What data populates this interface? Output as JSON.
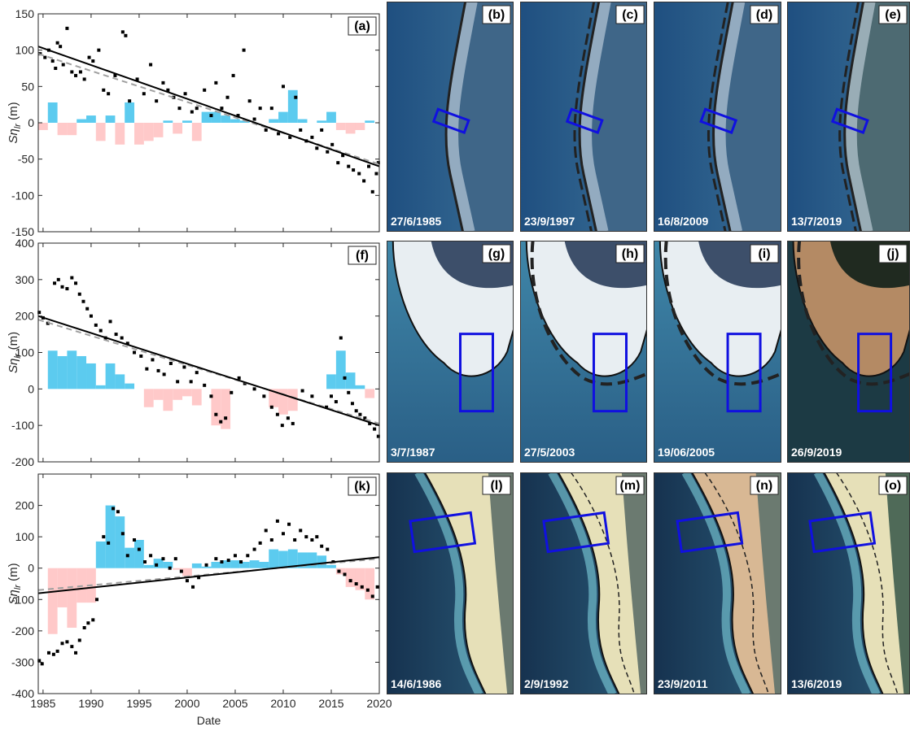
{
  "chart_data": [
    {
      "type": "scatter",
      "panel_label": "(a)",
      "ylabel": [
        "Sη",
        "lr",
        " (m)"
      ],
      "xlim": [
        1984.5,
        2020
      ],
      "xticks": [
        1985,
        1990,
        1995,
        2000,
        2005,
        2010,
        2015,
        2020
      ],
      "xtick_labels": false,
      "ylim": [
        -150,
        150
      ],
      "yticks": [
        -150,
        -100,
        -50,
        0,
        50,
        100,
        150
      ],
      "bars_positive": {
        "color": "#5ccbef",
        "x": [
          1986,
          1989,
          1990,
          1992,
          1994,
          1998,
          2000,
          2002,
          2003,
          2004,
          2005,
          2006,
          2009,
          2010,
          2011,
          2012,
          2014,
          2015,
          2019
        ],
        "values": [
          28,
          5,
          10,
          10,
          28,
          3,
          3,
          15,
          15,
          10,
          5,
          3,
          5,
          15,
          45,
          5,
          3,
          15,
          3
        ]
      },
      "bars_negative": {
        "color": "#ffc9c9",
        "x": [
          1985,
          1987,
          1988,
          1991,
          1993,
          1995,
          1996,
          1997,
          1999,
          2001,
          2016,
          2017,
          2018
        ],
        "values": [
          -10,
          -17,
          -17,
          -25,
          -30,
          -30,
          -25,
          -20,
          -15,
          -25,
          -10,
          -15,
          -10
        ]
      },
      "points": {
        "color": "#000000",
        "x": [
          1984.7,
          1985.2,
          1985.6,
          1986,
          1986.3,
          1986.5,
          1986.8,
          1987.1,
          1987.5,
          1988,
          1988.4,
          1988.9,
          1989.3,
          1989.8,
          1990.2,
          1990.8,
          1991.3,
          1991.8,
          1992.5,
          1993.3,
          1993.6,
          1994,
          1994.8,
          1995.5,
          1996.2,
          1996.8,
          1997.5,
          1998,
          1998.6,
          1999.2,
          1999.8,
          2000.5,
          2001,
          2001.8,
          2002.5,
          2003,
          2003.6,
          2004.2,
          2004.8,
          2005.3,
          2005.9,
          2006.5,
          2007,
          2007.6,
          2008.2,
          2008.8,
          2009.5,
          2010,
          2010.7,
          2011.3,
          2011.8,
          2012.4,
          2013,
          2013.5,
          2014,
          2014.6,
          2015.1,
          2015.7,
          2016.2,
          2016.8,
          2017.3,
          2017.9,
          2018.4,
          2018.9,
          2019.3,
          2019.7,
          2019.9
        ],
        "values": [
          95,
          90,
          100,
          85,
          75,
          110,
          105,
          80,
          130,
          70,
          65,
          70,
          60,
          90,
          85,
          100,
          45,
          40,
          65,
          125,
          120,
          30,
          60,
          40,
          80,
          30,
          55,
          45,
          35,
          20,
          40,
          15,
          20,
          45,
          10,
          55,
          20,
          35,
          65,
          10,
          100,
          30,
          5,
          20,
          -10,
          20,
          -15,
          50,
          -20,
          35,
          -10,
          -25,
          -20,
          -35,
          -10,
          -40,
          -30,
          -55,
          -45,
          -60,
          -65,
          -70,
          -80,
          -60,
          -95,
          -70,
          -55
        ]
      },
      "trend": {
        "color": "#000000",
        "x": [
          1984.5,
          2020
        ],
        "values": [
          105,
          -60
        ]
      },
      "trend_dashed": {
        "color": "#a0a0a0",
        "x": [
          1984.5,
          2020
        ],
        "values": [
          95,
          -57
        ]
      }
    },
    {
      "type": "scatter",
      "panel_label": "(f)",
      "ylabel": [
        "Sη",
        "lr",
        " (m)"
      ],
      "xlim": [
        1984.5,
        2020
      ],
      "xticks": [
        1985,
        1990,
        1995,
        2000,
        2005,
        2010,
        2015,
        2020
      ],
      "xtick_labels": false,
      "ylim": [
        -200,
        400
      ],
      "yticks": [
        -200,
        -100,
        0,
        100,
        200,
        300,
        400
      ],
      "bars_positive": {
        "color": "#5ccbef",
        "x": [
          1986,
          1987,
          1988,
          1989,
          1990,
          1991,
          1992,
          1993,
          1994,
          2015,
          2016,
          2017,
          2018
        ],
        "values": [
          105,
          90,
          105,
          90,
          70,
          10,
          70,
          40,
          15,
          40,
          105,
          45,
          10
        ]
      },
      "bars_negative": {
        "color": "#ffc9c9",
        "x": [
          1996,
          1997,
          1998,
          1999,
          2000,
          2001,
          2003,
          2004,
          2009,
          2010,
          2011,
          2019
        ],
        "values": [
          -50,
          -30,
          -60,
          -30,
          -20,
          -45,
          -100,
          -110,
          -50,
          -70,
          -60,
          -25
        ]
      },
      "points": {
        "color": "#000000",
        "x": [
          1984.6,
          1985,
          1985.5,
          1986.2,
          1986.6,
          1987,
          1987.5,
          1988,
          1988.4,
          1988.8,
          1989.2,
          1989.6,
          1990,
          1990.5,
          1991,
          1991.5,
          1992,
          1992.6,
          1993.2,
          1993.8,
          1994.5,
          1995.2,
          1995.8,
          1996.4,
          1997,
          1997.6,
          1998.3,
          1999,
          1999.7,
          2000.4,
          2001,
          2001.8,
          2002.5,
          2003,
          2003.5,
          2004,
          2004.6,
          2005.4,
          2006,
          2007,
          2008,
          2008.8,
          2009.4,
          2009.9,
          2010.5,
          2011,
          2012,
          2013,
          2014.5,
          2015,
          2015.5,
          2016,
          2016.4,
          2016.8,
          2017.2,
          2017.6,
          2018,
          2018.5,
          2019,
          2019.5,
          2019.9
        ],
        "values": [
          210,
          195,
          180,
          290,
          300,
          280,
          275,
          305,
          290,
          260,
          240,
          220,
          200,
          175,
          160,
          140,
          185,
          150,
          140,
          125,
          100,
          90,
          55,
          80,
          50,
          40,
          70,
          20,
          60,
          20,
          45,
          10,
          -20,
          -70,
          -90,
          -80,
          -10,
          30,
          15,
          0,
          -20,
          -50,
          -70,
          -100,
          -80,
          -95,
          -5,
          -20,
          -50,
          -20,
          -35,
          140,
          30,
          -10,
          -40,
          -60,
          -70,
          -80,
          -95,
          -110,
          -130
        ]
      },
      "trend": {
        "color": "#000000",
        "x": [
          1984.5,
          2020
        ],
        "values": [
          200,
          -100
        ]
      },
      "trend_dashed": {
        "color": "#a0a0a0",
        "x": [
          1984.5,
          2020
        ],
        "values": [
          190,
          -95
        ]
      }
    },
    {
      "type": "scatter",
      "panel_label": "(k)",
      "ylabel": [
        "Sη",
        "lr",
        " (m)"
      ],
      "xlabel": "Date",
      "xlim": [
        1984.5,
        2020
      ],
      "xticks": [
        1985,
        1990,
        1995,
        2000,
        2005,
        2010,
        2015,
        2020
      ],
      "xtick_labels": true,
      "ylim": [
        -400,
        300
      ],
      "yticks": [
        -400,
        -300,
        -200,
        -100,
        0,
        100,
        200
      ],
      "bars_positive": {
        "color": "#5ccbef",
        "x": [
          1991,
          1992,
          1993,
          1994,
          1995,
          1996,
          1997,
          1998,
          2001,
          2002,
          2003,
          2004,
          2005,
          2006,
          2007,
          2008,
          2009,
          2010,
          2011,
          2012,
          2013,
          2014,
          2015
        ],
        "values": [
          85,
          200,
          165,
          65,
          90,
          10,
          30,
          20,
          15,
          5,
          20,
          25,
          25,
          20,
          25,
          20,
          60,
          55,
          60,
          50,
          50,
          40,
          10
        ]
      },
      "bars_negative": {
        "color": "#ffc9c9",
        "x": [
          1986,
          1987,
          1988,
          1989,
          1990,
          1999,
          2000,
          2016,
          2017,
          2018,
          2019
        ],
        "values": [
          -210,
          -125,
          -190,
          -110,
          -110,
          -5,
          -25,
          -20,
          -60,
          -70,
          -100
        ]
      },
      "points": {
        "color": "#000000",
        "x": [
          1984.6,
          1984.9,
          1985.6,
          1986.1,
          1986.5,
          1987,
          1987.5,
          1988,
          1988.4,
          1988.8,
          1989.3,
          1989.7,
          1990.2,
          1990.6,
          1991.3,
          1991.8,
          1992.3,
          1992.8,
          1993.3,
          1993.8,
          1994.5,
          1995,
          1995.6,
          1996.2,
          1996.8,
          1997.5,
          1998.2,
          1998.8,
          1999.4,
          2000,
          2000.6,
          2001.2,
          2002,
          2003,
          2003.6,
          2004.3,
          2005,
          2005.6,
          2006.3,
          2007,
          2007.6,
          2008.2,
          2008.8,
          2009.4,
          2010,
          2010.6,
          2011.2,
          2011.8,
          2012.4,
          2013,
          2013.5,
          2014,
          2014.6,
          2015.2,
          2015.8,
          2016.4,
          2017,
          2017.6,
          2018.2,
          2018.8,
          2019.3,
          2019.8
        ],
        "values": [
          -295,
          -305,
          -270,
          -275,
          -265,
          -240,
          -235,
          -250,
          -270,
          -230,
          -190,
          -175,
          -165,
          -100,
          100,
          80,
          190,
          180,
          110,
          40,
          90,
          60,
          20,
          40,
          10,
          30,
          0,
          30,
          -10,
          -40,
          -60,
          -30,
          10,
          30,
          20,
          25,
          40,
          20,
          40,
          60,
          80,
          120,
          90,
          150,
          110,
          140,
          90,
          120,
          100,
          90,
          100,
          70,
          60,
          20,
          -10,
          -20,
          -40,
          -50,
          -60,
          -70,
          -90,
          -60
        ]
      },
      "trend": {
        "color": "#000000",
        "x": [
          1984.5,
          2020
        ],
        "values": [
          -80,
          35
        ]
      },
      "trend_dashed": {
        "color": "#a0a0a0",
        "x": [
          1984.5,
          2020
        ],
        "values": [
          -70,
          30
        ]
      }
    }
  ],
  "images": [
    {
      "label": "(b)",
      "date": "27/6/1985"
    },
    {
      "label": "(c)",
      "date": "23/9/1997"
    },
    {
      "label": "(d)",
      "date": "16/8/2009"
    },
    {
      "label": "(e)",
      "date": "13/7/2019"
    },
    {
      "label": "(g)",
      "date": "3/7/1987"
    },
    {
      "label": "(h)",
      "date": "27/5/2003"
    },
    {
      "label": "(i)",
      "date": "19/06/2005"
    },
    {
      "label": "(j)",
      "date": "26/9/2019"
    },
    {
      "label": "(l)",
      "date": "14/6/1986"
    },
    {
      "label": "(m)",
      "date": "2/9/1992"
    },
    {
      "label": "(n)",
      "date": "23/9/2011"
    },
    {
      "label": "(o)",
      "date": "13/6/2019"
    }
  ]
}
